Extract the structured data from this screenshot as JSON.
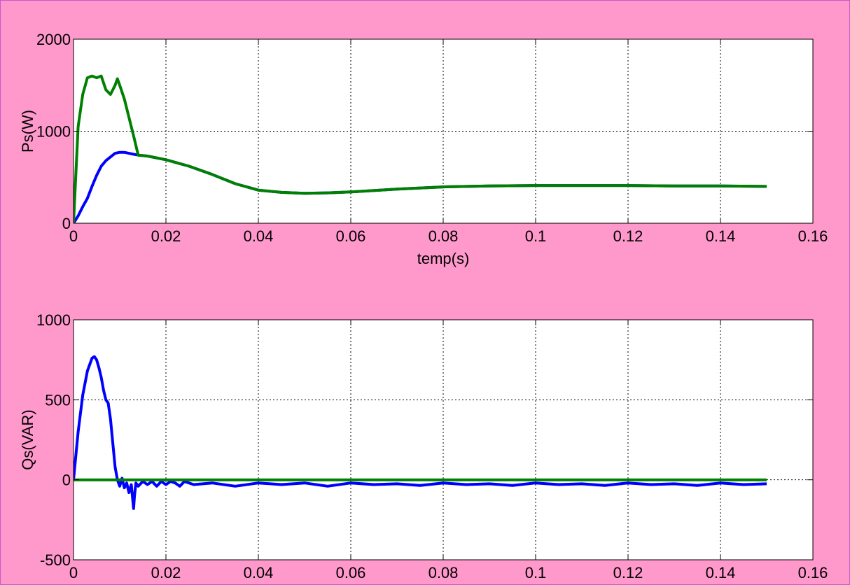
{
  "colors": {
    "background": "#ff99cc",
    "plot_background": "#ffffff",
    "series_blue": "#0000ff",
    "series_green": "#008000",
    "grid": "#000000"
  },
  "chart_data": [
    {
      "type": "line",
      "ylabel": "Ps(W)",
      "xlabel": "temp(s)",
      "xlim": [
        0,
        0.16
      ],
      "ylim": [
        0,
        2000
      ],
      "xticks": [
        0,
        0.02,
        0.04,
        0.06,
        0.08,
        0.1,
        0.12,
        0.14,
        0.16
      ],
      "xtick_labels": [
        "0",
        "0.02",
        "0.04",
        "0.06",
        "0.08",
        "0.1",
        "0.12",
        "0.14",
        "0.16"
      ],
      "yticks": [
        0,
        1000,
        2000
      ],
      "ytick_labels": [
        "0",
        "1000",
        "2000"
      ],
      "grid": true,
      "series": [
        {
          "color": "#0000ff",
          "x": [
            0,
            0.001,
            0.002,
            0.003,
            0.004,
            0.005,
            0.006,
            0.007,
            0.008,
            0.009,
            0.01,
            0.011,
            0.012,
            0.013,
            0.014,
            0.016,
            0.02,
            0.025,
            0.03,
            0.035,
            0.04,
            0.045,
            0.05,
            0.055,
            0.06,
            0.07,
            0.08,
            0.09,
            0.1,
            0.11,
            0.12,
            0.13,
            0.14,
            0.15
          ],
          "y": [
            0,
            80,
            180,
            270,
            400,
            520,
            620,
            680,
            720,
            760,
            770,
            770,
            760,
            750,
            740,
            730,
            690,
            620,
            530,
            430,
            360,
            335,
            325,
            330,
            340,
            370,
            395,
            405,
            410,
            410,
            410,
            405,
            405,
            400
          ]
        },
        {
          "color": "#008000",
          "x": [
            0,
            0.001,
            0.002,
            0.003,
            0.004,
            0.005,
            0.006,
            0.007,
            0.008,
            0.009,
            0.0095,
            0.01,
            0.011,
            0.012,
            0.013,
            0.014,
            0.016,
            0.02,
            0.025,
            0.03,
            0.035,
            0.04,
            0.045,
            0.05,
            0.055,
            0.06,
            0.07,
            0.08,
            0.09,
            0.1,
            0.11,
            0.12,
            0.13,
            0.14,
            0.15
          ],
          "y": [
            0,
            1050,
            1400,
            1580,
            1600,
            1580,
            1600,
            1450,
            1400,
            1500,
            1570,
            1500,
            1350,
            1150,
            950,
            740,
            730,
            690,
            620,
            530,
            430,
            360,
            335,
            325,
            330,
            340,
            370,
            395,
            405,
            410,
            410,
            410,
            405,
            405,
            400
          ]
        }
      ]
    },
    {
      "type": "line",
      "ylabel": "Qs(VAR)",
      "xlabel": "temp(s)",
      "xlim": [
        0,
        0.16
      ],
      "ylim": [
        -500,
        1000
      ],
      "xticks": [
        0,
        0.02,
        0.04,
        0.06,
        0.08,
        0.1,
        0.12,
        0.14,
        0.16
      ],
      "xtick_labels": [
        "0",
        "0.02",
        "0.04",
        "0.06",
        "0.08",
        "0.1",
        "0.12",
        "0.14",
        "0.16"
      ],
      "yticks": [
        -500,
        0,
        500,
        1000
      ],
      "ytick_labels": [
        "-500",
        "0",
        "500",
        "1000"
      ],
      "grid": true,
      "series": [
        {
          "color": "#0000ff",
          "x": [
            0,
            0.001,
            0.002,
            0.003,
            0.004,
            0.0045,
            0.005,
            0.0055,
            0.006,
            0.0065,
            0.007,
            0.0075,
            0.008,
            0.0085,
            0.009,
            0.0095,
            0.01,
            0.0105,
            0.011,
            0.0115,
            0.012,
            0.0125,
            0.013,
            0.0132,
            0.0135,
            0.014,
            0.015,
            0.016,
            0.017,
            0.018,
            0.019,
            0.02,
            0.021,
            0.022,
            0.023,
            0.024,
            0.026,
            0.03,
            0.035,
            0.04,
            0.045,
            0.05,
            0.055,
            0.06,
            0.065,
            0.07,
            0.075,
            0.08,
            0.085,
            0.09,
            0.095,
            0.1,
            0.105,
            0.11,
            0.115,
            0.12,
            0.125,
            0.13,
            0.135,
            0.14,
            0.145,
            0.15
          ],
          "y": [
            0,
            300,
            530,
            680,
            760,
            770,
            750,
            700,
            640,
            560,
            500,
            480,
            380,
            230,
            80,
            0,
            -40,
            10,
            -50,
            -20,
            -80,
            -30,
            -180,
            -100,
            -20,
            -40,
            -10,
            -30,
            -10,
            -40,
            -10,
            -30,
            -10,
            -20,
            -40,
            -10,
            -30,
            -20,
            -40,
            -20,
            -30,
            -20,
            -40,
            -20,
            -30,
            -25,
            -35,
            -20,
            -30,
            -25,
            -35,
            -20,
            -30,
            -25,
            -35,
            -20,
            -30,
            -25,
            -35,
            -20,
            -30,
            -25
          ]
        },
        {
          "color": "#008000",
          "x": [
            0,
            0.15
          ],
          "y": [
            0,
            0
          ]
        }
      ]
    }
  ]
}
